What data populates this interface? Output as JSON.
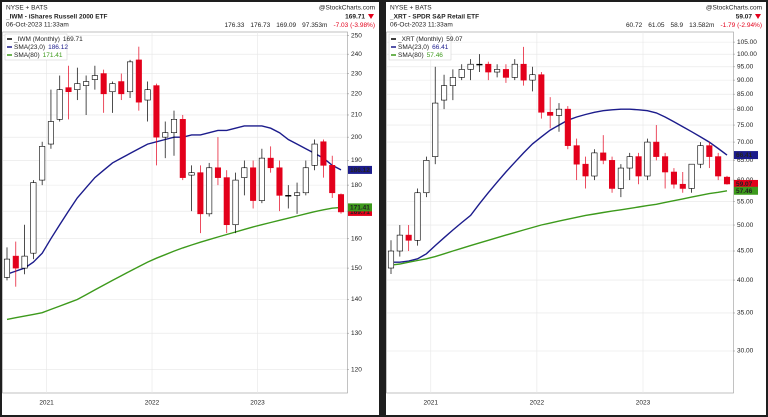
{
  "chart_data": [
    {
      "type": "candlestick",
      "exchange": "NYSE + BATS",
      "title": "_IWM - iShares Russell 2000 ETF",
      "source": "@StockCharts.com",
      "date": "06-Oct-2023 11:33am",
      "volume": "97.353m",
      "change": "-7.03 (-3.98%)",
      "log_scale": true,
      "grid": true,
      "legend": "upper left",
      "up_color": "#000000",
      "down_color": "#e3001b",
      "categories": [
        null,
        null,
        null,
        null,
        null,
        "2021",
        null,
        null,
        null,
        null,
        null,
        null,
        null,
        null,
        null,
        null,
        null,
        "2022",
        null,
        null,
        null,
        null,
        null,
        null,
        null,
        null,
        null,
        null,
        null,
        "2023",
        null,
        null,
        null,
        null,
        null,
        null,
        null,
        null,
        null
      ],
      "ylim": [
        114,
        252
      ],
      "yticks": [
        250,
        240,
        230,
        220,
        210,
        200,
        190,
        180,
        170,
        160,
        150,
        140,
        130,
        120
      ],
      "series": [
        {
          "name": "_IWM (Monthly)",
          "open": [
            147,
            154,
            150,
            155,
            182,
            197,
            208,
            223,
            222,
            224,
            227,
            230,
            221,
            226,
            221,
            237,
            217,
            224,
            200,
            202,
            208,
            184,
            185,
            169,
            187,
            183,
            165,
            183,
            187,
            174,
            191,
            187,
            176,
            176,
            177,
            188,
            198,
            188,
            176.33
          ],
          "high": [
            157,
            159,
            165,
            182,
            198,
            222,
            229,
            234,
            233,
            229,
            234,
            232,
            226,
            230,
            237,
            244,
            226,
            225,
            207,
            212,
            210,
            188,
            188,
            189,
            200,
            186,
            185,
            190,
            190,
            195,
            196,
            190,
            180,
            181,
            190,
            199,
            199,
            192,
            176.73
          ],
          "low": [
            146,
            144,
            148,
            153,
            180,
            195,
            207,
            208,
            217,
            210,
            222,
            211,
            211,
            217,
            218,
            212,
            207,
            188,
            191,
            192,
            182,
            170,
            162,
            168,
            180,
            162,
            162,
            176,
            171,
            173,
            185,
            170,
            171,
            169,
            176,
            186,
            183,
            175,
            169.09
          ],
          "close": [
            153,
            150,
            154,
            181,
            196,
            207,
            222,
            221,
            225,
            226,
            229,
            220,
            225,
            220,
            236,
            216,
            222,
            200,
            202,
            208,
            183,
            185,
            169,
            187,
            183,
            165,
            182,
            187,
            174,
            191,
            187,
            176,
            176,
            177,
            187,
            197,
            188,
            177,
            169.71
          ]
        },
        {
          "name": "SMA(23,0)",
          "color": "#1c1c8c",
          "values": [
            148,
            149,
            150,
            152,
            155,
            160,
            165,
            170,
            175,
            179,
            183,
            186,
            189,
            191,
            193,
            195,
            197,
            198,
            199,
            200,
            200,
            201,
            201,
            202,
            203,
            203,
            204,
            205,
            205,
            205,
            204,
            202,
            199,
            197,
            195,
            193,
            191,
            188,
            186.12
          ]
        },
        {
          "name": "SMA(80)",
          "color": "#3d9a1c",
          "values": [
            134,
            134.5,
            135,
            135.5,
            136,
            137,
            138,
            139,
            140,
            141.5,
            143,
            144.5,
            146,
            147.5,
            149,
            150.5,
            152,
            153.3,
            154.5,
            155.7,
            156.8,
            157.8,
            158.8,
            159.7,
            160.6,
            161.5,
            162.4,
            163.3,
            164.2,
            165,
            165.8,
            166.6,
            167.4,
            168.2,
            169,
            169.8,
            170.5,
            171.1,
            171.41
          ]
        }
      ]
    },
    {
      "type": "candlestick",
      "exchange": "NYSE + BATS",
      "title": "_XRT - SPDR S&P Retail ETF",
      "source": "@StockCharts.com",
      "date": "06-Oct-2023 11:33am",
      "volume": "13.582m",
      "change": "-1.79 (-2.94%)",
      "log_scale": true,
      "grid": true,
      "legend": "upper left",
      "up_color": "#000000",
      "down_color": "#e3001b",
      "categories": [
        null,
        null,
        null,
        null,
        null,
        "2021",
        null,
        null,
        null,
        null,
        null,
        null,
        null,
        null,
        null,
        null,
        null,
        "2022",
        null,
        null,
        null,
        null,
        null,
        null,
        null,
        null,
        null,
        null,
        null,
        "2023",
        null,
        null,
        null,
        null,
        null,
        null,
        null,
        null,
        null
      ],
      "ylim": [
        25.3,
        109.4
      ],
      "yticks": [
        {
          "value": 105,
          "label": "105.00"
        },
        {
          "value": 100,
          "label": "100.00"
        },
        {
          "value": 95,
          "label": "95.00"
        },
        {
          "value": 90,
          "label": "90.00"
        },
        {
          "value": 85,
          "label": "85.00"
        },
        {
          "value": 80,
          "label": "80.00"
        },
        {
          "value": 75,
          "label": "75.00"
        },
        {
          "value": 70,
          "label": "70.00"
        },
        {
          "value": 65,
          "label": "65.00"
        },
        {
          "value": 60,
          "label": "60.00"
        },
        {
          "value": 55,
          "label": "55.00"
        },
        {
          "value": 50,
          "label": "50.00"
        },
        {
          "value": 45,
          "label": "45.00"
        },
        {
          "value": 40,
          "label": "40.00"
        },
        {
          "value": 35,
          "label": "35.00"
        },
        {
          "value": 30,
          "label": "30.00"
        }
      ],
      "series": [
        {
          "name": "_XRT (Monthly)",
          "open": [
            42,
            45,
            48,
            47,
            57,
            66,
            83,
            88,
            91,
            94,
            96,
            96,
            93,
            94,
            91,
            96,
            90,
            92,
            79,
            78,
            80,
            69,
            64,
            61,
            67,
            65,
            58,
            63,
            66,
            61,
            70,
            66,
            62,
            59,
            58,
            64,
            69,
            66,
            60.72
          ],
          "high": [
            47,
            50,
            50,
            58,
            66,
            95,
            92,
            94,
            96,
            98,
            100,
            97,
            96,
            96,
            98,
            103,
            95,
            93,
            84,
            82,
            81,
            71,
            66,
            68,
            72,
            66,
            64,
            67,
            67,
            71,
            75,
            67,
            63,
            62,
            64,
            70,
            70,
            67,
            61.05
          ],
          "low": [
            41,
            44,
            45,
            46,
            56,
            64,
            80,
            83,
            90,
            90,
            93,
            90,
            91,
            89,
            90,
            88,
            86,
            77,
            74,
            73,
            68,
            60,
            58,
            60,
            64,
            57,
            56,
            60,
            59,
            60,
            65,
            58,
            58,
            57,
            57,
            63,
            63,
            60,
            58.9
          ],
          "close": [
            45,
            48,
            47,
            57,
            65,
            82,
            88,
            91,
            94,
            96,
            96,
            93,
            94,
            91,
            96,
            90,
            92,
            79,
            78,
            80,
            69,
            64,
            61,
            67,
            65,
            58,
            63,
            66,
            61,
            70,
            66,
            62,
            59,
            58,
            64,
            69,
            66,
            61,
            59.07
          ]
        },
        {
          "name": "SMA(23,0)",
          "color": "#1c1c8c",
          "values": [
            43,
            43,
            43.2,
            43.6,
            44.5,
            46,
            47.5,
            49,
            50.5,
            52,
            54.5,
            57,
            59.5,
            62,
            64.5,
            67,
            69.5,
            71.5,
            73.5,
            75,
            76.5,
            77.5,
            78.3,
            79,
            79.5,
            79.8,
            80,
            80,
            79.8,
            79.5,
            78.8,
            77.5,
            76,
            74.5,
            73,
            71.5,
            70,
            68.2,
            66.41
          ]
        },
        {
          "name": "SMA(80)",
          "color": "#3d9a1c",
          "values": [
            42.5,
            42.7,
            43,
            43.3,
            43.6,
            44,
            44.5,
            45,
            45.5,
            46,
            46.5,
            47,
            47.5,
            48,
            48.5,
            49,
            49.5,
            50,
            50.4,
            50.8,
            51.2,
            51.6,
            52,
            52.3,
            52.6,
            52.9,
            53.2,
            53.5,
            53.8,
            54.1,
            54.4,
            54.8,
            55.2,
            55.6,
            56,
            56.4,
            56.8,
            57.1,
            57.46
          ]
        }
      ]
    }
  ]
}
